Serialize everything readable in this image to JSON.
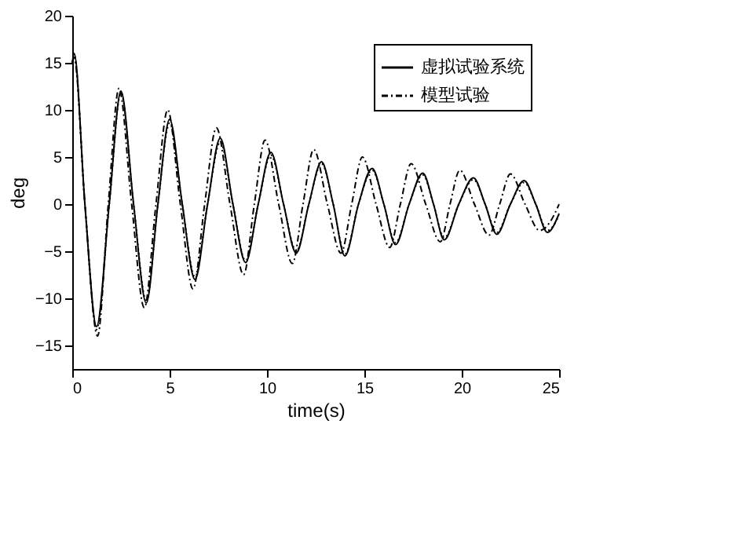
{
  "chart_data": {
    "type": "line",
    "xlabel": "time(s)",
    "ylabel": "deg",
    "xlim": [
      0,
      25
    ],
    "xticks": [
      0,
      5,
      10,
      15,
      20,
      25
    ],
    "ylim": [
      -17.5,
      20
    ],
    "yticks": [
      -15,
      -10,
      -5,
      0,
      5,
      10,
      15,
      20
    ],
    "grid": false,
    "legend": "top right",
    "series": [
      {
        "name": "虚拟试验系统",
        "color": "#000000",
        "line_style": "solid",
        "x": [
          0,
          0.1,
          0.65,
          1.25,
          1.9,
          2.5,
          3.15,
          3.8,
          4.4,
          5.0,
          5.65,
          6.3,
          6.95,
          7.6,
          8.25,
          8.9,
          9.55,
          10.2,
          10.85,
          11.5,
          12.15,
          12.8,
          13.4,
          14.0,
          14.7,
          15.4,
          16.0,
          16.6,
          17.3,
          18.0,
          18.55,
          19.1,
          19.85,
          20.6,
          21.2,
          21.8,
          22.5,
          23.2,
          23.8,
          24.4,
          25
        ],
        "values": [
          15,
          16,
          0,
          -13,
          0,
          12,
          0,
          -10.5,
          0,
          9,
          0,
          -8,
          0,
          7,
          0,
          -6.2,
          0,
          5.5,
          0,
          -5.2,
          0,
          4.5,
          0,
          -5.5,
          0,
          3.8,
          0,
          -4.3,
          0,
          3.3,
          0,
          -3.8,
          0,
          2.8,
          0,
          -3.2,
          0,
          2.5,
          0,
          -3,
          -1
        ]
      },
      {
        "name": "模型试验",
        "color": "#000000",
        "line_style": "dashed",
        "x": [
          0,
          0.1,
          0.65,
          1.3,
          1.85,
          2.4,
          3.05,
          3.7,
          4.3,
          4.9,
          5.55,
          6.2,
          6.8,
          7.4,
          8.1,
          8.8,
          9.35,
          9.9,
          10.6,
          11.3,
          11.85,
          12.4,
          13.1,
          13.8,
          14.35,
          14.9,
          15.6,
          16.3,
          16.85,
          17.4,
          18.15,
          18.9,
          19.4,
          19.9,
          20.65,
          21.4,
          21.95,
          22.5,
          23.25,
          24.0,
          24.5,
          25
        ],
        "values": [
          15,
          15.5,
          0,
          -14,
          0,
          12.3,
          0,
          -11,
          0,
          10,
          0,
          -9,
          0,
          8.1,
          0,
          -7.5,
          0,
          6.8,
          0,
          -6.3,
          0,
          5.8,
          0,
          -5.2,
          0,
          5.0,
          0,
          -4.6,
          0,
          4.3,
          0,
          -4,
          0,
          3.6,
          0,
          -3.3,
          0,
          3.2,
          0,
          -2.8,
          -2,
          0
        ]
      },
      {
        "color": "#000000",
        "line_style": "dotted",
        "x": [
          0,
          0.1,
          0.65,
          1.25,
          1.9,
          2.5,
          3.15,
          3.8,
          4.4,
          5.0,
          5.65,
          6.3,
          6.95,
          7.6,
          8.25,
          8.9,
          9.55,
          10.2,
          10.85,
          11.5,
          12.15,
          12.8,
          13.4,
          14.0,
          14.7,
          15.4,
          16.0,
          16.6,
          17.3,
          18.0,
          18.55,
          19.1,
          19.85,
          20.6,
          21.2,
          21.8,
          22.5,
          23.2,
          23.8,
          24.4,
          25
        ],
        "values": [
          15,
          15.8,
          0,
          -13.3,
          0,
          11.8,
          0,
          -10.2,
          0,
          8.6,
          0,
          -7.7,
          0,
          6.6,
          0,
          -6,
          0,
          5.2,
          0,
          -5,
          0,
          4.3,
          0,
          -5.3,
          0,
          3.6,
          0,
          -4.1,
          0,
          3.1,
          0,
          -3.6,
          0,
          2.6,
          0,
          -3,
          0,
          2.3,
          0,
          -2.8,
          -1.2
        ]
      }
    ]
  }
}
